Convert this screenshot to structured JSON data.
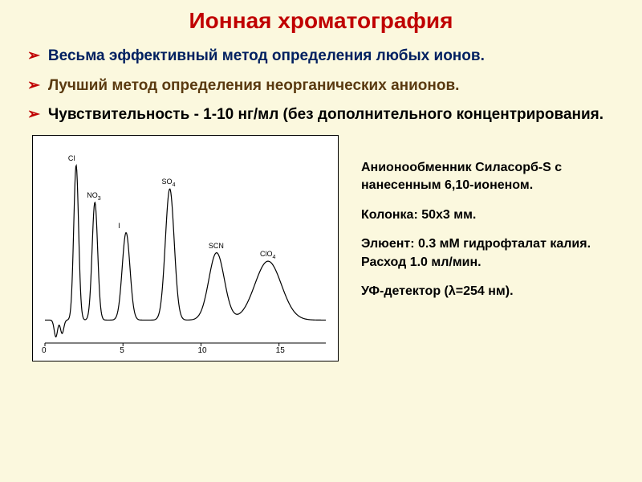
{
  "title": "Ионная хроматография",
  "bullets": [
    {
      "text": "Весьма эффективный метод определения любых ионов.",
      "cls": "b1"
    },
    {
      "text": "Лучший метод определения неорганических анионов.",
      "cls": "b2"
    },
    {
      "text": "Чувствительность - 1-10 нг/мл (без дополнительного концентрирования.",
      "cls": "b3"
    }
  ],
  "side": {
    "l1": "Анионообменник Силасорб-S с нанесенным  6,10-ионеном.",
    "l2": "Колонка: 50х3 мм.",
    "l3": "Элюент: 0.3 мМ гидрофталат калия. Расход 1.0 мл/мин.",
    "l4": "УФ-детектор (λ=254 нм)."
  },
  "chart": {
    "type": "line",
    "background_color": "#ffffff",
    "line_color": "#000000",
    "line_width": 1.2,
    "xlim": [
      0,
      18
    ],
    "ylim": [
      0,
      100
    ],
    "xtick_values": [
      0,
      5,
      10,
      15
    ],
    "xtick_labels": [
      "0",
      "5",
      "10",
      "15"
    ],
    "tick_fontsize": 10,
    "peak_label_fontsize": 9,
    "peaks": [
      {
        "label": "Cl",
        "x": 2.0,
        "height": 92,
        "width": 0.22
      },
      {
        "label": "NO3",
        "sub": "3",
        "pre": "NO",
        "x": 3.2,
        "height": 70,
        "width": 0.25
      },
      {
        "label": "I",
        "x": 5.2,
        "height": 52,
        "width": 0.35
      },
      {
        "label": "SO4",
        "sub": "4",
        "pre": "SO",
        "x": 8.0,
        "height": 78,
        "width": 0.4
      },
      {
        "label": "SCN",
        "x": 11.0,
        "height": 40,
        "width": 0.7
      },
      {
        "label": "ClO4",
        "sub": "4",
        "pre": "ClO",
        "x": 14.3,
        "height": 35,
        "width": 1.2
      }
    ],
    "initial_dip": {
      "x": 0.7,
      "depth": -10,
      "width": 0.15,
      "second_x": 1.1,
      "second_depth": -8
    }
  }
}
